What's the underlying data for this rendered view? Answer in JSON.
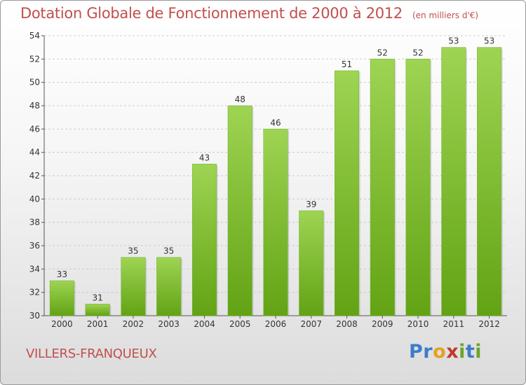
{
  "header": {
    "title": "Dotation Globale de Fonctionnement de 2000 à 2012",
    "unit": "(en milliers d'€)"
  },
  "footer": {
    "commune": "VILLERS-FRANQUEUX",
    "brand_letters": [
      "P",
      "r",
      "o",
      "x",
      "i",
      "t",
      "i"
    ]
  },
  "colors": {
    "title": "#c0504d",
    "bar_top": "#9ed453",
    "bar_bottom": "#62a314",
    "grid": "#cccccc",
    "brand": [
      "#3a7dc9",
      "#3a7dc9",
      "#e8a020",
      "#c0392b",
      "#6aa62a",
      "#3a7dc9",
      "#6aa62a"
    ]
  },
  "chart_data": {
    "type": "bar",
    "categories": [
      "2000",
      "2001",
      "2002",
      "2003",
      "2004",
      "2005",
      "2006",
      "2007",
      "2008",
      "2009",
      "2010",
      "2011",
      "2012"
    ],
    "values": [
      33,
      31,
      35,
      35,
      43,
      48,
      46,
      39,
      51,
      52,
      52,
      53,
      53
    ],
    "ylim": [
      30,
      54
    ],
    "yticks": [
      30,
      32,
      34,
      36,
      38,
      40,
      42,
      44,
      46,
      48,
      50,
      52,
      54
    ],
    "grid": true,
    "grid_style": "dashed-horizontal",
    "data_labels": true
  }
}
